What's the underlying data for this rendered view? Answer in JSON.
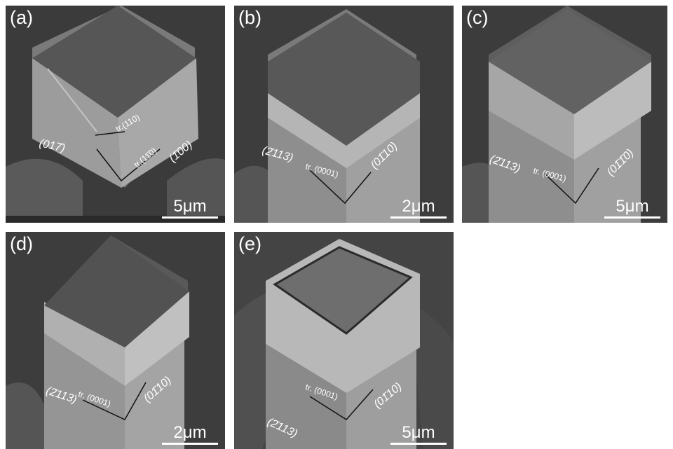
{
  "panels": [
    {
      "label": "(a)",
      "scale": "5μm",
      "annotations": [
        "(017̄)",
        "tr.(110)",
        "tr.(11̄0)",
        "(1̄00)"
      ]
    },
    {
      "label": "(b)",
      "scale": "2μm",
      "annotations": [
        "(2̄113)",
        "tr. (0001)",
        "(01̄10)"
      ]
    },
    {
      "label": "(c)",
      "scale": "5μm",
      "annotations": [
        "(2̄113)",
        "tr. (0001)",
        "(01̄1̄0)"
      ]
    },
    {
      "label": "(d)",
      "scale": "2μm",
      "annotations": [
        "(2̄113)",
        "tr. (0001)",
        "(01̄10)"
      ]
    },
    {
      "label": "(e)",
      "scale": "5μm",
      "annotations": [
        "(2̄113)",
        "tr. (0001)",
        "(01̄10)"
      ]
    }
  ]
}
